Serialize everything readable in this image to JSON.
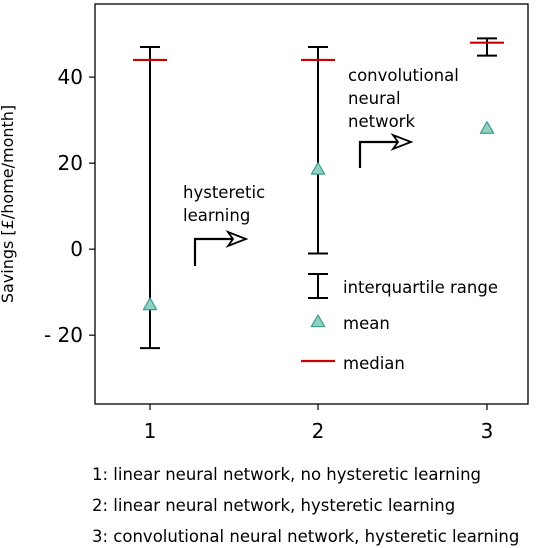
{
  "chart_data": {
    "type": "errorbar",
    "categories": [
      "1",
      "2",
      "3"
    ],
    "ylabel": "Savings [£/home/month]",
    "xlabel": "",
    "ylim": [
      -36,
      57
    ],
    "yticks": [
      40,
      20,
      0,
      -20
    ],
    "ytick_labels": [
      "40",
      "20",
      "0",
      "- 20"
    ],
    "points": [
      {
        "x": "1",
        "iqr_low": -23,
        "iqr_high": 47,
        "median": 44,
        "mean": -13
      },
      {
        "x": "2",
        "iqr_low": -1,
        "iqr_high": 47,
        "median": 44,
        "mean": 18.5
      },
      {
        "x": "3",
        "iqr_low": 45,
        "iqr_high": 49,
        "median": 48,
        "mean": 28
      }
    ],
    "annotations": [
      {
        "text": [
          "hysteretic",
          "learning"
        ]
      },
      {
        "text": [
          "convolutional",
          "neural",
          "network"
        ]
      }
    ],
    "legend": {
      "placement": "lower-right",
      "iqr": "interquartile range",
      "mean": "mean",
      "median": "median"
    },
    "colors": {
      "whisker": "#000000",
      "median": "#cc0000",
      "mean_fill": "#8fd1c2",
      "mean_edge": "#3f9e8a"
    }
  },
  "captions": [
    "1: linear neural network, no hysteretic learning",
    "2: linear neural network, hysteretic learning",
    "3: convolutional neural network, hysteretic learning"
  ]
}
